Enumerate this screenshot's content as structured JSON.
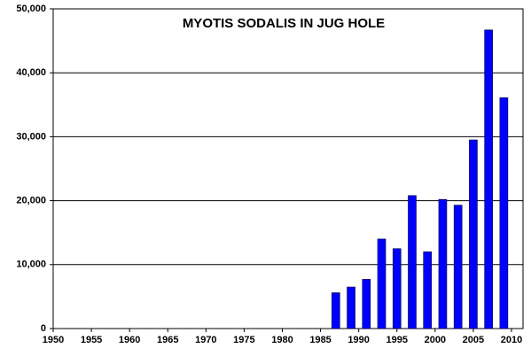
{
  "chart_data": {
    "type": "bar",
    "title": "MYOTIS SODALIS IN JUG HOLE",
    "x": [
      1987,
      1989,
      1991,
      1993,
      1995,
      1997,
      1999,
      2001,
      2003,
      2005,
      2007,
      2009
    ],
    "values": [
      5600,
      6500,
      7700,
      14000,
      12500,
      20800,
      12000,
      20200,
      19300,
      29500,
      46700,
      36100
    ],
    "color": "#0000ff",
    "xlim": [
      1950,
      2010
    ],
    "xticks": [
      1950,
      1955,
      1960,
      1965,
      1970,
      1975,
      1980,
      1985,
      1990,
      1995,
      2000,
      2005,
      2010
    ],
    "ylim": [
      0,
      50000
    ],
    "yticks": [
      0,
      {
        "value": 10000,
        "label": "10,000"
      },
      {
        "value": 20000,
        "label": "20,000"
      },
      {
        "value": 30000,
        "label": "30,000"
      },
      {
        "value": 40000,
        "label": "40,000"
      },
      {
        "value": 50000,
        "label": "50,000"
      }
    ],
    "grid": true
  }
}
